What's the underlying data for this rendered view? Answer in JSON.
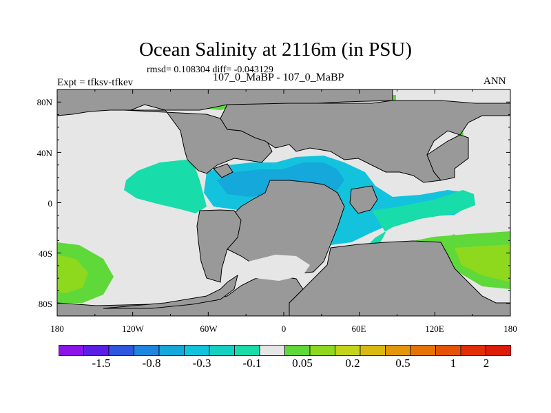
{
  "title": "Ocean Salinity at 2116m (in PSU)",
  "stats": "rmsd= 0.108304 diff= -0.043129",
  "subtitle": "107_0_MaBP - 107_0_MaBP",
  "left_label": "Expt = tfksv-tfkev",
  "right_label": "ANN",
  "lat_ticks": [
    "80N",
    "40N",
    "0",
    "40S",
    "80S"
  ],
  "lon_ticks": [
    "180",
    "120W",
    "60W",
    "0",
    "60E",
    "120E",
    "180"
  ],
  "colorbar": {
    "colors": [
      "#8b14e8",
      "#5a1ee6",
      "#2f56e0",
      "#1f86dd",
      "#14a8db",
      "#13c3dd",
      "#14d0c0",
      "#18dcaa",
      "#e6e6e6",
      "#5fd83a",
      "#8ed81e",
      "#c3d41a",
      "#d9b812",
      "#e3960c",
      "#e57408",
      "#e55406",
      "#e22e06",
      "#dd1d08"
    ],
    "labels": [
      "-1.5",
      "-0.8",
      "-0.3",
      "-0.1",
      "0.05",
      "0.2",
      "0.5",
      "1",
      "2"
    ]
  },
  "fill_colors": {
    "land": "#999999",
    "near_zero": "#e6e6e6",
    "teal": "#18dcaa",
    "cyan": "#13c3dd",
    "blue": "#14a8db",
    "green": "#5fd83a",
    "yellowgreen": "#8ed81e"
  }
}
